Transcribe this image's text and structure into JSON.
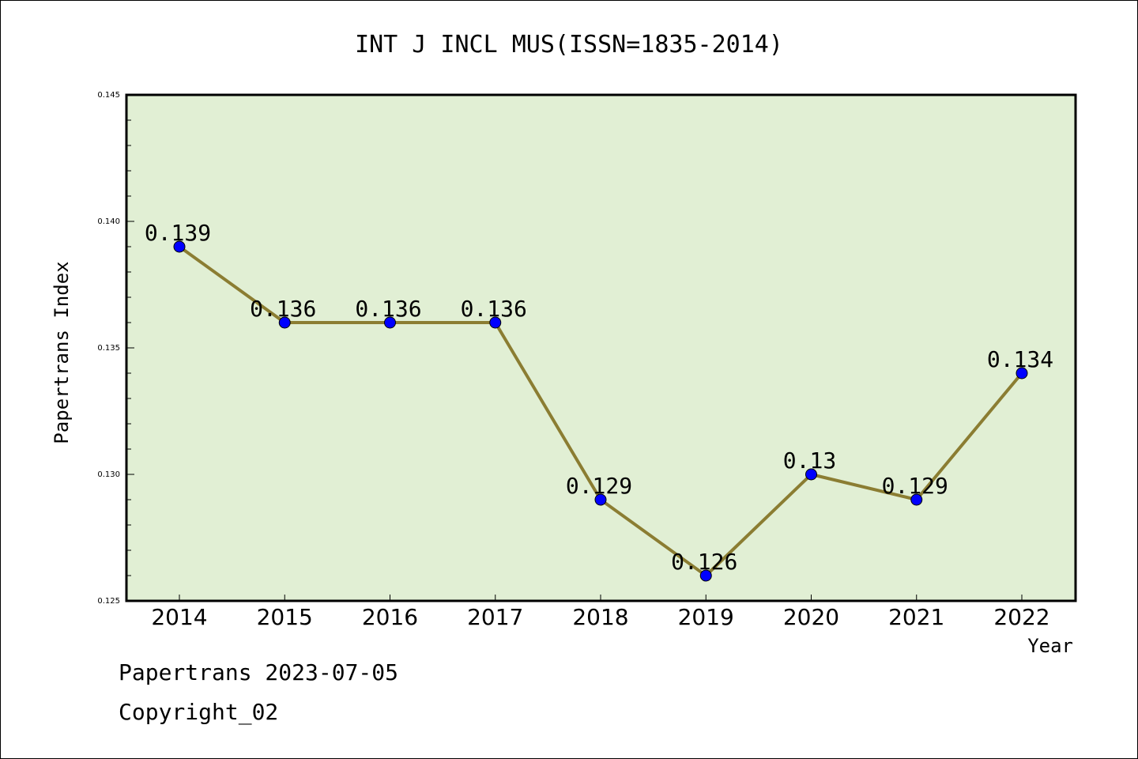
{
  "chart_data": {
    "type": "line",
    "title": "INT J INCL MUS(ISSN=1835-2014)",
    "xlabel": "Year",
    "ylabel": "Papertrans Index",
    "categories": [
      "2014",
      "2015",
      "2016",
      "2017",
      "2018",
      "2019",
      "2020",
      "2021",
      "2022"
    ],
    "series": [
      {
        "values": [
          0.139,
          0.136,
          0.136,
          0.136,
          0.129,
          0.126,
          0.13,
          0.129,
          0.134
        ],
        "data_labels": [
          "0.139",
          "0.136",
          "0.136",
          "0.136",
          "0.129",
          "0.126",
          "0.13",
          "0.129",
          "0.134"
        ]
      }
    ],
    "ylim": [
      0.125,
      0.145
    ],
    "yticks": [
      0.125,
      0.13,
      0.135,
      0.14,
      0.145
    ],
    "ytick_labels": [
      "0.125",
      "0.130",
      "0.135",
      "0.140",
      "0.145"
    ],
    "grid": false,
    "colors": {
      "plot_background": "#e1efd4",
      "line": "#8b7d32",
      "marker": "#0000ff"
    }
  },
  "footer": {
    "source_line": "Papertrans 2023-07-05",
    "copyright": "Copyright_02"
  }
}
